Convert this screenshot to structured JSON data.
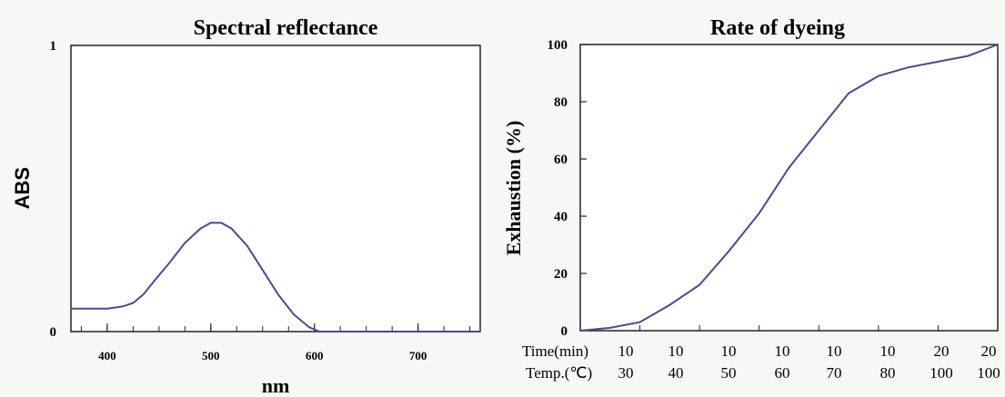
{
  "chart_data": [
    {
      "type": "line",
      "title": "Spectral reflectance",
      "xlabel": "nm",
      "ylabel": "ABS",
      "xlim": [
        365,
        760
      ],
      "ylim": [
        0,
        1
      ],
      "x_ticks": [
        400,
        500,
        600,
        700
      ],
      "y_ticks": [
        0,
        1
      ],
      "y_tick_labels": [
        "0",
        "1"
      ],
      "grid": false,
      "series_color": "#4a4a8c",
      "series": [
        {
          "x": [
            365,
            385,
            400,
            415,
            425,
            435,
            445,
            460,
            475,
            490,
            500,
            510,
            520,
            535,
            550,
            565,
            580,
            595,
            605,
            615,
            640,
            680,
            720,
            760
          ],
          "y": [
            0.08,
            0.08,
            0.08,
            0.088,
            0.1,
            0.13,
            0.175,
            0.24,
            0.31,
            0.36,
            0.38,
            0.38,
            0.36,
            0.3,
            0.215,
            0.13,
            0.06,
            0.015,
            0.0,
            0.0,
            0.0,
            0.0,
            0.0,
            0.0
          ]
        }
      ]
    },
    {
      "type": "line",
      "title": "Rate of dyeing",
      "xlabel": "",
      "ylabel": "Exhaustion (%)",
      "ylim": [
        0,
        100
      ],
      "y_ticks": [
        0,
        20,
        40,
        60,
        80,
        100
      ],
      "grid": false,
      "series_color": "#4a4a8c",
      "row_labels": [
        "Time(min)",
        "Temp.(℃)"
      ],
      "time_values": [
        "10",
        "10",
        "10",
        "10",
        "10",
        "10",
        "20",
        "20"
      ],
      "temp_values": [
        "30",
        "40",
        "50",
        "60",
        "70",
        "80",
        "100",
        "100"
      ],
      "series": [
        {
          "x": [
            0,
            0.5,
            1,
            1.5,
            2,
            2.5,
            3,
            3.5,
            4,
            4.5,
            5,
            5.5,
            6,
            6.5,
            7
          ],
          "y": [
            0,
            1,
            3,
            9,
            16,
            28,
            41,
            57,
            70,
            83,
            89,
            92,
            94,
            96,
            100
          ]
        }
      ]
    }
  ]
}
